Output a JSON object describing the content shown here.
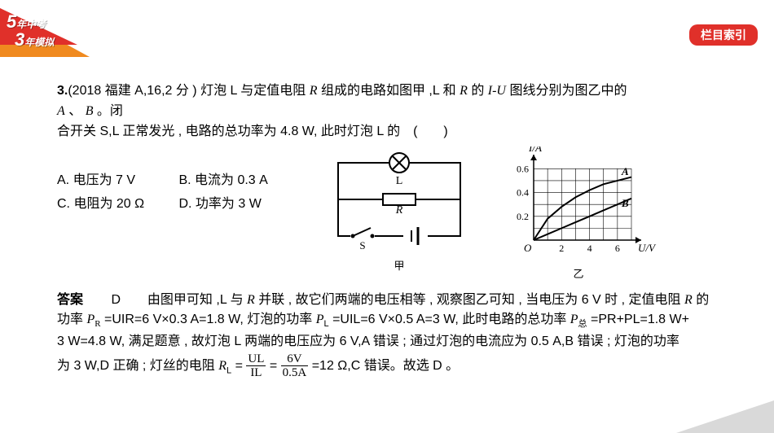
{
  "badge": {
    "line1_num": "5",
    "line1_txt": "年中考",
    "line2_num": "3",
    "line2_txt": "年模拟"
  },
  "index_tab": "栏目索引",
  "question": {
    "prefix": "3.",
    "source": "(2018 福建 A,16,2 分 )",
    "stem_a": "灯泡 L 与定值电阻 ",
    "stem_b": " 组成的电路如图甲 ,L 和 ",
    "stem_c": " 的 ",
    "stem_d": " 图线分别为图乙中的",
    "stem_line2_a": " 、 ",
    "stem_line2_b": " 。闭",
    "stem_line3": "合开关 S,L 正常发光 , 电路的总功率为 4.8 W, 此时灯泡 L 的　(　　)",
    "R": "R",
    "IU": "I-U",
    "A": "A",
    "B": "B"
  },
  "options": {
    "A": "A. 电压为 7 V",
    "B": "B. 电流为 0.3 A",
    "C": "C. 电阻为 20 Ω",
    "D": "D. 功率为 3 W"
  },
  "figure": {
    "jia": "甲",
    "yi": "乙"
  },
  "circuit": {
    "L": "L",
    "R": "R",
    "S": "S"
  },
  "graph": {
    "ylabel": "I/A",
    "xlabel": "U/V",
    "A": "A",
    "B": "B",
    "O": "O",
    "xticks": [
      "2",
      "4",
      "6"
    ],
    "yticks": [
      "0.2",
      "0.4",
      "0.6"
    ],
    "xlim": [
      0,
      7
    ],
    "ylim": [
      0,
      0.65
    ],
    "grid_color": "#000000",
    "curveA": [
      [
        0,
        0
      ],
      [
        1,
        0.18
      ],
      [
        2,
        0.28
      ],
      [
        3,
        0.36
      ],
      [
        4,
        0.42
      ],
      [
        5,
        0.47
      ],
      [
        6,
        0.5
      ],
      [
        7,
        0.53
      ]
    ],
    "curveB": [
      [
        0,
        0
      ],
      [
        1,
        0.05
      ],
      [
        2,
        0.1
      ],
      [
        3,
        0.15
      ],
      [
        4,
        0.2
      ],
      [
        5,
        0.25
      ],
      [
        6,
        0.3
      ],
      [
        7,
        0.35
      ]
    ]
  },
  "answer": {
    "label": "答案",
    "choice": "D",
    "part1_a": "由图甲可知 ,L 与 ",
    "part1_b": " 并联 , 故它们两端的电压相等 , 观察图乙可知 , 当电压为 6 V 时 , 定值电阻 ",
    "part1_c": " 的",
    "part2_a": "功率 ",
    "PR_eq": "=UIR=6 V×0.3 A=1.8 W,",
    "part2_b": " 灯泡的功率 ",
    "PL_eq": "=UIL=6 V×0.5 A=3 W,",
    "part2_c": " 此时电路的总功率 ",
    "Ptotal_eq": " =PR+PL=1.8 W+",
    "part3_a": "3 W=4.8 W, 满足题意 , 故灯泡 L 两端的电压应为 6 V,A 错误 ; 通过灯泡的电流应为 0.5 A,B 错误 ; 灯泡的功率",
    "part4_a": "为 3 W,D 正确 ; 灯丝的电阻 ",
    "RL_eq_b": "=12 Ω,C 错误。故选 D 。",
    "frac_num": "UL",
    "frac_den": "IL",
    "frac2_num": "6V",
    "frac2_den": "0.5A",
    "eq": "="
  },
  "symbols": {
    "PR": "P",
    "R": "R",
    "PL": "P",
    "L": "L",
    "Pz": "P",
    "zong": "总",
    "RL": "R"
  }
}
